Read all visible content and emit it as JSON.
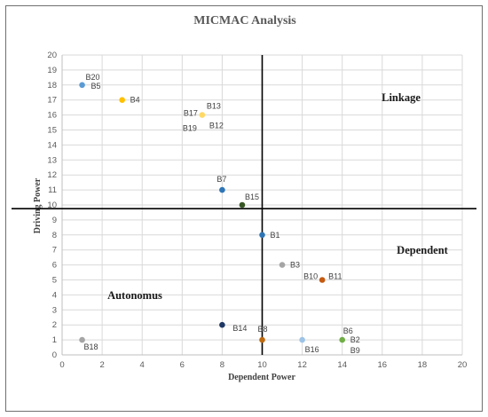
{
  "chart_data": {
    "type": "scatter",
    "title": "MICMAC Analysis",
    "xlabel": "Dependent Power",
    "ylabel": "Driving Power",
    "xlim": [
      0,
      20
    ],
    "ylim": [
      0,
      20
    ],
    "x_ticks": [
      "0",
      "2",
      "4",
      "6",
      "8",
      "10",
      "12",
      "14",
      "16",
      "18",
      "20"
    ],
    "y_ticks": [
      "0",
      "1",
      "2",
      "3",
      "4",
      "5",
      "6",
      "7",
      "8",
      "9",
      "10",
      "11",
      "12",
      "13",
      "14",
      "15",
      "16",
      "17",
      "18",
      "19",
      "20"
    ],
    "grid": true,
    "quadrant_lines": {
      "x": 10,
      "y": 9.75
    },
    "quadrant_labels": [
      "Linkage",
      "Dependent",
      "Autonomus"
    ],
    "points": [
      {
        "x": 1,
        "y": 18,
        "color": "#5B9BD5",
        "labels": [
          "B20",
          "B5"
        ]
      },
      {
        "x": 3,
        "y": 17,
        "color": "#FFC000",
        "labels": [
          "B4"
        ]
      },
      {
        "x": 7,
        "y": 16,
        "color": "#FFD966",
        "labels": [
          "B17",
          "B13",
          "B12",
          "B19"
        ]
      },
      {
        "x": 8,
        "y": 11,
        "color": "#2E75B6",
        "labels": [
          "B7"
        ]
      },
      {
        "x": 9,
        "y": 10,
        "color": "#375623",
        "labels": [
          "B15"
        ]
      },
      {
        "x": 10,
        "y": 8,
        "color": "#2E75B6",
        "labels": [
          "B1"
        ]
      },
      {
        "x": 11,
        "y": 6,
        "color": "#A5A5A5",
        "labels": [
          "B3"
        ]
      },
      {
        "x": 13,
        "y": 5,
        "color": "#C55A11",
        "labels": [
          "B10",
          "B11"
        ]
      },
      {
        "x": 8,
        "y": 2,
        "color": "#1F3864",
        "labels": [
          "B14"
        ]
      },
      {
        "x": 1,
        "y": 1,
        "color": "#A5A5A5",
        "labels": [
          "B18"
        ]
      },
      {
        "x": 10,
        "y": 1,
        "color": "#BF6A0E",
        "labels": [
          "B8"
        ]
      },
      {
        "x": 12,
        "y": 1,
        "color": "#9DC3E6",
        "labels": [
          "B16"
        ]
      },
      {
        "x": 14,
        "y": 1,
        "color": "#70AD47",
        "labels": [
          "B6",
          "B2",
          "B9"
        ]
      }
    ]
  }
}
